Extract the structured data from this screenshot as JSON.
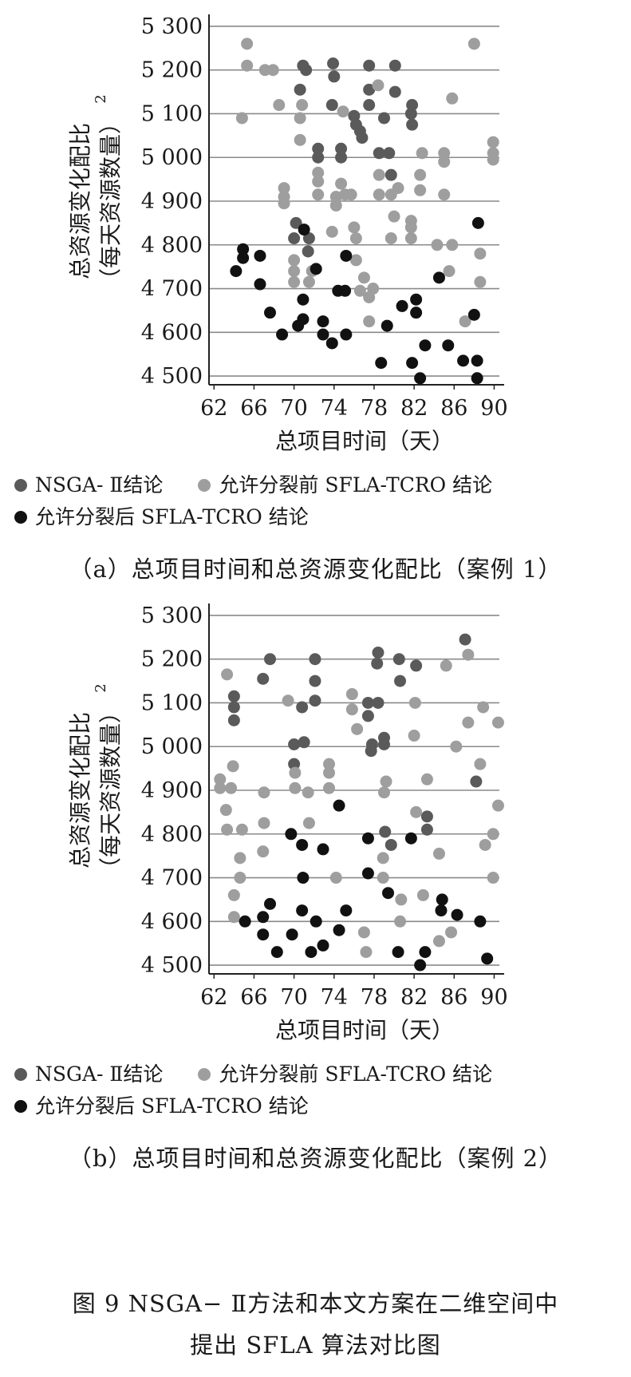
{
  "legend": {
    "nsga": "NSGA- Ⅱ结论",
    "before": "允许分裂前 SFLA-TCRO 结论",
    "after": "允许分裂后 SFLA-TCRO 结论"
  },
  "colors": {
    "nsga": "#5a5a5a",
    "before": "#9e9e9e",
    "after": "#111111",
    "grid": "#8a8a8a"
  },
  "figure_caption": {
    "line1": "图 9 NSGA− Ⅱ方法和本文方案在二维空间中",
    "line2": "提出 SFLA 算法对比图"
  },
  "chart_data": [
    {
      "type": "scatter",
      "caption": "（a）总项目时间和总资源变化配比（案例 1）",
      "xlabel": "总项目时间（天）",
      "ylabel": "总资源变化配比（每天资源数量）",
      "ylabel_sup": "2",
      "xlim": [
        61.5,
        91
      ],
      "ylim": [
        4480,
        5320
      ],
      "xticks": [
        62,
        66,
        70,
        74,
        78,
        82,
        86,
        90
      ],
      "xtick_labels": [
        "62",
        "66",
        "70",
        "74",
        "78",
        "82",
        "86",
        "90"
      ],
      "yticks": [
        4500,
        4600,
        4700,
        4800,
        4900,
        5000,
        5100,
        5200,
        5300
      ],
      "ytick_labels": [
        "4 500",
        "4 600",
        "4 700",
        "4 800",
        "4 900",
        "5 000",
        "5 100",
        "5 200",
        "5 300"
      ],
      "grid": true,
      "series": [
        {
          "name": "NSGA- Ⅱ结论",
          "key": "nsga",
          "points": [
            [
              70.9,
              5210
            ],
            [
              71.2,
              5200
            ],
            [
              73.9,
              5215
            ],
            [
              77.5,
              5210
            ],
            [
              80.1,
              5210
            ],
            [
              70.6,
              5155
            ],
            [
              74.0,
              5185
            ],
            [
              77.5,
              5155
            ],
            [
              80.1,
              5150
            ],
            [
              73.8,
              5120
            ],
            [
              77.5,
              5120
            ],
            [
              81.8,
              5120
            ],
            [
              76.0,
              5095
            ],
            [
              79.0,
              5090
            ],
            [
              81.7,
              5100
            ],
            [
              81.8,
              5075
            ],
            [
              76.2,
              5075
            ],
            [
              76.6,
              5060
            ],
            [
              76.8,
              5045
            ],
            [
              72.4,
              5020
            ],
            [
              74.7,
              5020
            ],
            [
              72.4,
              5000
            ],
            [
              74.7,
              5000
            ],
            [
              78.5,
              5010
            ],
            [
              79.5,
              5010
            ],
            [
              79.7,
              4960
            ],
            [
              70.2,
              4850
            ],
            [
              71.5,
              4815
            ],
            [
              70.0,
              4815
            ],
            [
              71.4,
              4785
            ]
          ]
        },
        {
          "name": "允许分裂前 SFLA-TCRO 结论",
          "key": "before",
          "points": [
            [
              65.3,
              5260
            ],
            [
              88.0,
              5260
            ],
            [
              65.3,
              5210
            ],
            [
              67.1,
              5200
            ],
            [
              67.9,
              5200
            ],
            [
              78.4,
              5165
            ],
            [
              64.8,
              5090
            ],
            [
              68.5,
              5120
            ],
            [
              70.8,
              5120
            ],
            [
              85.8,
              5135
            ],
            [
              70.6,
              5090
            ],
            [
              74.9,
              5105
            ],
            [
              70.6,
              5040
            ],
            [
              72.4,
              4965
            ],
            [
              72.4,
              4945
            ],
            [
              72.4,
              4915
            ],
            [
              69.0,
              4930
            ],
            [
              69.0,
              4910
            ],
            [
              69.0,
              4895
            ],
            [
              74.2,
              4910
            ],
            [
              74.2,
              4890
            ],
            [
              74.7,
              4940
            ],
            [
              75.1,
              4915
            ],
            [
              75.7,
              4915
            ],
            [
              78.5,
              4960
            ],
            [
              78.5,
              4915
            ],
            [
              79.7,
              4915
            ],
            [
              80.4,
              4930
            ],
            [
              82.6,
              4960
            ],
            [
              82.6,
              4925
            ],
            [
              82.8,
              5010
            ],
            [
              85.0,
              5010
            ],
            [
              85.0,
              4990
            ],
            [
              85.0,
              4915
            ],
            [
              89.9,
              5035
            ],
            [
              89.9,
              5010
            ],
            [
              89.9,
              4995
            ],
            [
              80.0,
              4865
            ],
            [
              76.0,
              4840
            ],
            [
              76.2,
              4815
            ],
            [
              81.7,
              4855
            ],
            [
              81.7,
              4840
            ],
            [
              81.7,
              4815
            ],
            [
              79.7,
              4815
            ],
            [
              73.8,
              4830
            ],
            [
              70.0,
              4765
            ],
            [
              70.0,
              4740
            ],
            [
              71.8,
              4740
            ],
            [
              70.0,
              4715
            ],
            [
              71.5,
              4715
            ],
            [
              76.2,
              4765
            ],
            [
              77.0,
              4725
            ],
            [
              77.9,
              4700
            ],
            [
              77.5,
              4680
            ],
            [
              76.6,
              4695
            ],
            [
              84.3,
              4800
            ],
            [
              85.8,
              4800
            ],
            [
              85.5,
              4740
            ],
            [
              88.6,
              4780
            ],
            [
              88.6,
              4715
            ],
            [
              87.1,
              4625
            ],
            [
              77.5,
              4625
            ]
          ]
        },
        {
          "name": "允许分裂后 SFLA-TCRO 结论",
          "key": "after",
          "points": [
            [
              64.9,
              4790
            ],
            [
              64.9,
              4770
            ],
            [
              64.2,
              4740
            ],
            [
              66.6,
              4775
            ],
            [
              66.6,
              4710
            ],
            [
              71.0,
              4835
            ],
            [
              72.2,
              4745
            ],
            [
              75.2,
              4775
            ],
            [
              88.4,
              4850
            ],
            [
              84.5,
              4725
            ],
            [
              67.6,
              4645
            ],
            [
              70.9,
              4675
            ],
            [
              70.9,
              4630
            ],
            [
              70.4,
              4615
            ],
            [
              68.8,
              4595
            ],
            [
              72.9,
              4625
            ],
            [
              72.9,
              4595
            ],
            [
              73.8,
              4575
            ],
            [
              74.4,
              4695
            ],
            [
              75.1,
              4695
            ],
            [
              75.2,
              4595
            ],
            [
              80.8,
              4660
            ],
            [
              82.2,
              4675
            ],
            [
              82.2,
              4645
            ],
            [
              79.3,
              4615
            ],
            [
              78.7,
              4530
            ],
            [
              81.8,
              4530
            ],
            [
              82.6,
              4495
            ],
            [
              83.1,
              4570
            ],
            [
              85.4,
              4570
            ],
            [
              86.9,
              4535
            ],
            [
              88.0,
              4640
            ],
            [
              88.3,
              4535
            ],
            [
              88.3,
              4495
            ]
          ]
        }
      ]
    },
    {
      "type": "scatter",
      "caption": "（b）总项目时间和总资源变化配比（案例 2）",
      "xlabel": "总项目时间（天）",
      "ylabel": "总资源变化配比（每天资源数量）",
      "ylabel_sup": "2",
      "xlim": [
        61.5,
        91
      ],
      "ylim": [
        4480,
        5320
      ],
      "xticks": [
        62,
        66,
        70,
        74,
        78,
        82,
        86,
        90
      ],
      "xtick_labels": [
        "62",
        "66",
        "70",
        "74",
        "78",
        "82",
        "86",
        "90"
      ],
      "yticks": [
        4500,
        4600,
        4700,
        4800,
        4900,
        5000,
        5100,
        5200,
        5300
      ],
      "ytick_labels": [
        "4 500",
        "4 600",
        "4 700",
        "4 800",
        "4 900",
        "5 000",
        "5 100",
        "5 200",
        "5 300"
      ],
      "grid": true,
      "series": [
        {
          "name": "NSGA- Ⅱ结论",
          "key": "nsga",
          "points": [
            [
              67.6,
              5200
            ],
            [
              72.1,
              5200
            ],
            [
              78.4,
              5215
            ],
            [
              80.5,
              5200
            ],
            [
              82.2,
              5185
            ],
            [
              87.1,
              5245
            ],
            [
              66.9,
              5155
            ],
            [
              72.1,
              5150
            ],
            [
              78.3,
              5190
            ],
            [
              80.6,
              5150
            ],
            [
              64.0,
              5115
            ],
            [
              64.0,
              5090
            ],
            [
              64.0,
              5060
            ],
            [
              72.1,
              5105
            ],
            [
              77.4,
              5100
            ],
            [
              78.4,
              5100
            ],
            [
              77.4,
              5070
            ],
            [
              70.8,
              5090
            ],
            [
              70.0,
              5005
            ],
            [
              71.0,
              5010
            ],
            [
              77.8,
              5005
            ],
            [
              77.7,
              4990
            ],
            [
              79.0,
              5020
            ],
            [
              79.0,
              5005
            ],
            [
              70.0,
              4960
            ],
            [
              88.2,
              4920
            ],
            [
              83.3,
              4840
            ],
            [
              83.3,
              4810
            ],
            [
              79.1,
              4805
            ],
            [
              79.7,
              4775
            ]
          ]
        },
        {
          "name": "允许分裂前 SFLA-TCRO 结论",
          "key": "before",
          "points": [
            [
              63.3,
              5165
            ],
            [
              62.6,
              4925
            ],
            [
              62.6,
              4905
            ],
            [
              63.7,
              4905
            ],
            [
              63.9,
              4955
            ],
            [
              63.2,
              4855
            ],
            [
              63.3,
              4810
            ],
            [
              64.8,
              4810
            ],
            [
              64.6,
              4745
            ],
            [
              64.6,
              4700
            ],
            [
              64.0,
              4660
            ],
            [
              64.0,
              4610
            ],
            [
              67.0,
              4895
            ],
            [
              67.0,
              4825
            ],
            [
              66.9,
              4760
            ],
            [
              69.4,
              5105
            ],
            [
              70.1,
              4940
            ],
            [
              70.1,
              4905
            ],
            [
              71.4,
              4895
            ],
            [
              71.5,
              4825
            ],
            [
              73.5,
              4960
            ],
            [
              73.5,
              4940
            ],
            [
              73.5,
              4905
            ],
            [
              74.2,
              4700
            ],
            [
              75.8,
              5120
            ],
            [
              75.8,
              5085
            ],
            [
              76.3,
              5040
            ],
            [
              79.2,
              4920
            ],
            [
              79.0,
              4895
            ],
            [
              78.9,
              4745
            ],
            [
              78.9,
              4700
            ],
            [
              80.7,
              4650
            ],
            [
              80.6,
              4600
            ],
            [
              77.0,
              4575
            ],
            [
              77.2,
              4530
            ],
            [
              82.1,
              5100
            ],
            [
              82.0,
              5025
            ],
            [
              82.2,
              4850
            ],
            [
              82.9,
              4660
            ],
            [
              83.3,
              4925
            ],
            [
              84.5,
              4755
            ],
            [
              84.5,
              4555
            ],
            [
              85.2,
              5185
            ],
            [
              86.2,
              5000
            ],
            [
              87.4,
              5210
            ],
            [
              87.4,
              5055
            ],
            [
              88.6,
              4960
            ],
            [
              88.9,
              5090
            ],
            [
              89.1,
              4775
            ],
            [
              89.9,
              4800
            ],
            [
              89.9,
              4700
            ],
            [
              90.4,
              5055
            ],
            [
              90.4,
              4865
            ],
            [
              85.7,
              4575
            ]
          ]
        },
        {
          "name": "允许分裂后 SFLA-TCRO 结论",
          "key": "after",
          "points": [
            [
              69.7,
              4800
            ],
            [
              70.8,
              4775
            ],
            [
              72.9,
              4765
            ],
            [
              74.5,
              4865
            ],
            [
              77.4,
              4790
            ],
            [
              81.7,
              4790
            ],
            [
              70.9,
              4700
            ],
            [
              77.4,
              4710
            ],
            [
              79.4,
              4665
            ],
            [
              84.8,
              4650
            ],
            [
              84.7,
              4625
            ],
            [
              86.3,
              4615
            ],
            [
              65.1,
              4600
            ],
            [
              66.9,
              4610
            ],
            [
              66.9,
              4570
            ],
            [
              67.6,
              4640
            ],
            [
              68.3,
              4530
            ],
            [
              69.8,
              4570
            ],
            [
              70.8,
              4625
            ],
            [
              71.7,
              4530
            ],
            [
              72.2,
              4600
            ],
            [
              72.9,
              4545
            ],
            [
              74.5,
              4580
            ],
            [
              75.2,
              4625
            ],
            [
              80.4,
              4530
            ],
            [
              82.6,
              4500
            ],
            [
              83.1,
              4530
            ],
            [
              88.6,
              4600
            ],
            [
              89.3,
              4515
            ]
          ]
        }
      ]
    }
  ]
}
